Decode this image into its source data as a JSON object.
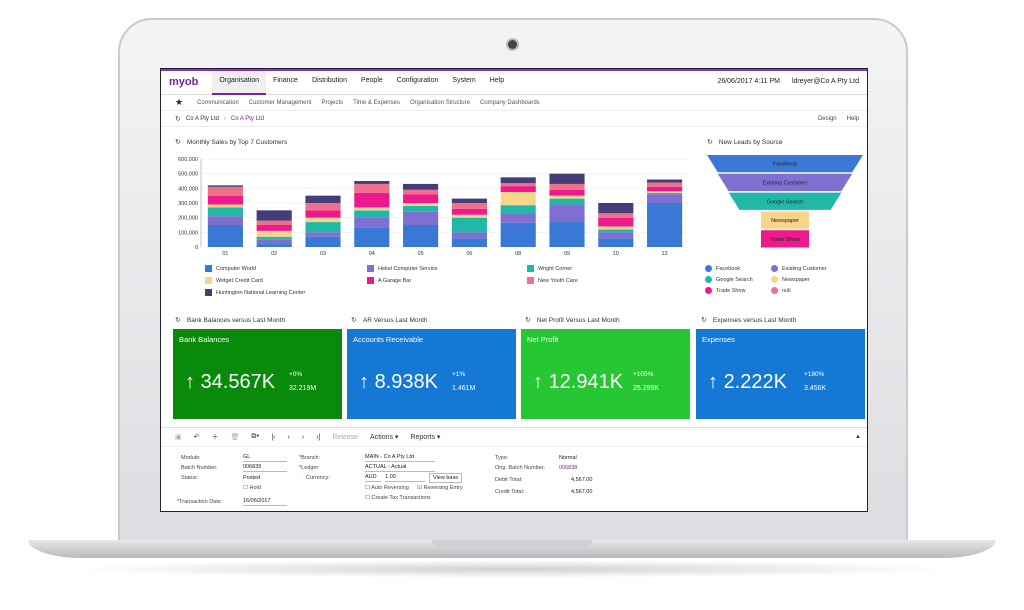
{
  "app": {
    "logo": "myob",
    "menu": [
      "Organisation",
      "Finance",
      "Distribution",
      "People",
      "Configuration",
      "System",
      "Help"
    ],
    "datetime": "26/06/2017 4:11 PM",
    "user": "ldreyer@Co A Pty Ltd"
  },
  "subnav": [
    "Communication",
    "Customer Management",
    "Projects",
    "Time & Expenses",
    "Organisation Structure",
    "Company Dashboards"
  ],
  "crumb": {
    "company": "Co A Pty Ltd",
    "link": "Co A Pty Ltd",
    "design": "Design",
    "help": "Help"
  },
  "widgets": {
    "sales_title": "Monthly Sales by Top 7 Customers",
    "leads_title": "New Leads by Source",
    "bank_title": "Bank Balances versus Last Month",
    "ar_title": "AR Versus Last Month",
    "np_title": "Net Profit Versus Last Month",
    "exp_title": "Expenses versus Last Month"
  },
  "chart_data": [
    {
      "type": "bar",
      "stacked": true,
      "title": "Monthly Sales by Top 7 Customers",
      "categories": [
        "01",
        "02",
        "03",
        "04",
        "05",
        "06",
        "08",
        "09",
        "10",
        "12"
      ],
      "y_ticks": [
        "0",
        "100,000",
        "200,000",
        "300,000",
        "400,000",
        "500,000",
        "600,000"
      ],
      "ylim": [
        0,
        600000
      ],
      "series": [
        {
          "name": "Computer World",
          "color": "#3a78d6",
          "values": [
            150000,
            20000,
            70000,
            130000,
            150000,
            60000,
            165000,
            170000,
            60000,
            300000
          ]
        },
        {
          "name": "Hekel Computer Service",
          "color": "#7f6fd0",
          "values": [
            60000,
            30000,
            30000,
            70000,
            90000,
            40000,
            60000,
            120000,
            40000,
            60000
          ]
        },
        {
          "name": "Wright Corner",
          "color": "#22b8a8",
          "values": [
            60000,
            20000,
            70000,
            50000,
            40000,
            100000,
            60000,
            40000,
            20000,
            10000
          ]
        },
        {
          "name": "Widget Credit Card",
          "color": "#f7d58a",
          "values": [
            20000,
            40000,
            30000,
            20000,
            20000,
            20000,
            90000,
            20000,
            20000,
            10000
          ]
        },
        {
          "name": "A Garage Bar",
          "color": "#ec1a8c",
          "values": [
            60000,
            40000,
            50000,
            100000,
            60000,
            40000,
            40000,
            40000,
            60000,
            30000
          ]
        },
        {
          "name": "New Youth Care",
          "color": "#ef7088",
          "values": [
            60000,
            30000,
            50000,
            60000,
            30000,
            40000,
            20000,
            40000,
            30000,
            30000
          ]
        },
        {
          "name": "Huntington National Learning Center",
          "color": "#433d78",
          "values": [
            10000,
            70000,
            50000,
            20000,
            40000,
            30000,
            40000,
            70000,
            70000,
            20000
          ]
        }
      ],
      "legend": "bottom"
    },
    {
      "type": "funnel",
      "title": "New Leads by Source",
      "categories": [
        "Facebook",
        "Existing Customer",
        "Google Search",
        "Newspaper",
        "Trade Show"
      ],
      "colors": [
        "#3a78d6",
        "#7f6fd0",
        "#22b8a8",
        "#f7d58a",
        "#ec1a8c"
      ],
      "legend": [
        "Facebook",
        "Existing Customer",
        "Google Search",
        "Newspaper",
        "Trade Show",
        "null"
      ],
      "legend_colors": [
        "#3a78d6",
        "#7f6fd0",
        "#22b8a8",
        "#f7d58a",
        "#ec1a8c",
        "#ef7088"
      ]
    }
  ],
  "kpis": [
    {
      "title": "Bank Balances",
      "value": "34.567K",
      "pct": "+0%",
      "prev": "32.219M",
      "color": "#0a8a0a"
    },
    {
      "title": "Accounts Receivable",
      "value": "8.938K",
      "pct": "+1%",
      "prev": "1.461M",
      "color": "#1578d4"
    },
    {
      "title": "Net Profit",
      "value": "12.941K",
      "pct": "+105%",
      "prev": "25.299K",
      "color": "#26c733"
    },
    {
      "title": "Expenses",
      "value": "2.222K",
      "pct": "+180%",
      "prev": "3.456K",
      "color": "#1578d4"
    }
  ],
  "toolbar": {
    "release": "Release",
    "actions": "Actions",
    "reports": "Reports"
  },
  "form": {
    "module_label": "Module:",
    "module": "GL",
    "batch_label": "Batch Number:",
    "batch": "006839",
    "status_label": "Status:",
    "status": "Posted",
    "hold": "Hold",
    "txn_label": "Transaction Date:",
    "txn": "16/06/2017",
    "branch_label": "Branch:",
    "branch": "MAIN - Co A Pty Ltd",
    "ledger_label": "Ledger:",
    "ledger": "ACTUAL - Actual",
    "currency_label": "Currency:",
    "currency": "AUD",
    "rate": "1.00",
    "view_base": "View base",
    "auto_rev": "Auto Reversing",
    "rev_entry": "Reversing Entry",
    "tax": "Create Tax Transactions",
    "type_label": "Type:",
    "type": "Normal",
    "orig_label": "Orig. Batch Number:",
    "orig": "006838",
    "debit_label": "Debit Total:",
    "debit": "4,567.00",
    "credit_label": "Credit Total:",
    "credit": "4,567.00"
  }
}
